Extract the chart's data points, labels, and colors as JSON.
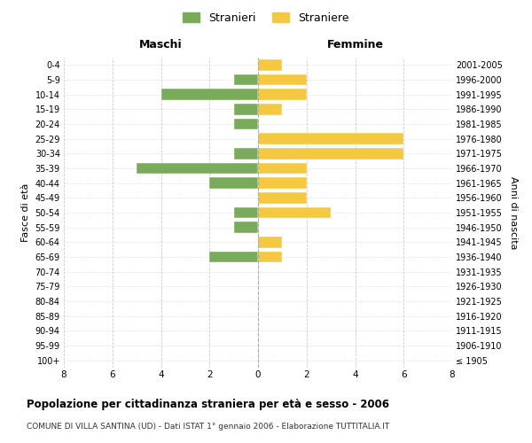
{
  "age_groups": [
    "100+",
    "95-99",
    "90-94",
    "85-89",
    "80-84",
    "75-79",
    "70-74",
    "65-69",
    "60-64",
    "55-59",
    "50-54",
    "45-49",
    "40-44",
    "35-39",
    "30-34",
    "25-29",
    "20-24",
    "15-19",
    "10-14",
    "5-9",
    "0-4"
  ],
  "birth_years": [
    "≤ 1905",
    "1906-1910",
    "1911-1915",
    "1916-1920",
    "1921-1925",
    "1926-1930",
    "1931-1935",
    "1936-1940",
    "1941-1945",
    "1946-1950",
    "1951-1955",
    "1956-1960",
    "1961-1965",
    "1966-1970",
    "1971-1975",
    "1976-1980",
    "1981-1985",
    "1986-1990",
    "1991-1995",
    "1996-2000",
    "2001-2005"
  ],
  "stranieri": [
    0,
    0,
    0,
    0,
    0,
    0,
    0,
    2,
    0,
    1,
    1,
    0,
    2,
    5,
    1,
    0,
    1,
    1,
    4,
    1,
    0
  ],
  "straniere": [
    0,
    0,
    0,
    0,
    0,
    0,
    0,
    1,
    1,
    0,
    3,
    2,
    2,
    2,
    6,
    6,
    0,
    1,
    2,
    2,
    1
  ],
  "color_stranieri": "#7aab5a",
  "color_straniere": "#f5c842",
  "xlim": 8,
  "title": "Popolazione per cittadinanza straniera per età e sesso - 2006",
  "subtitle": "COMUNE DI VILLA SANTINA (UD) - Dati ISTAT 1° gennaio 2006 - Elaborazione TUTTITALIA.IT",
  "ylabel_left": "Fasce di età",
  "ylabel_right": "Anni di nascita",
  "xlabel_left": "Maschi",
  "xlabel_right": "Femmine",
  "legend_stranieri": "Stranieri",
  "legend_straniere": "Straniere",
  "bg_color": "#ffffff",
  "grid_color": "#cccccc",
  "bar_height": 0.75
}
